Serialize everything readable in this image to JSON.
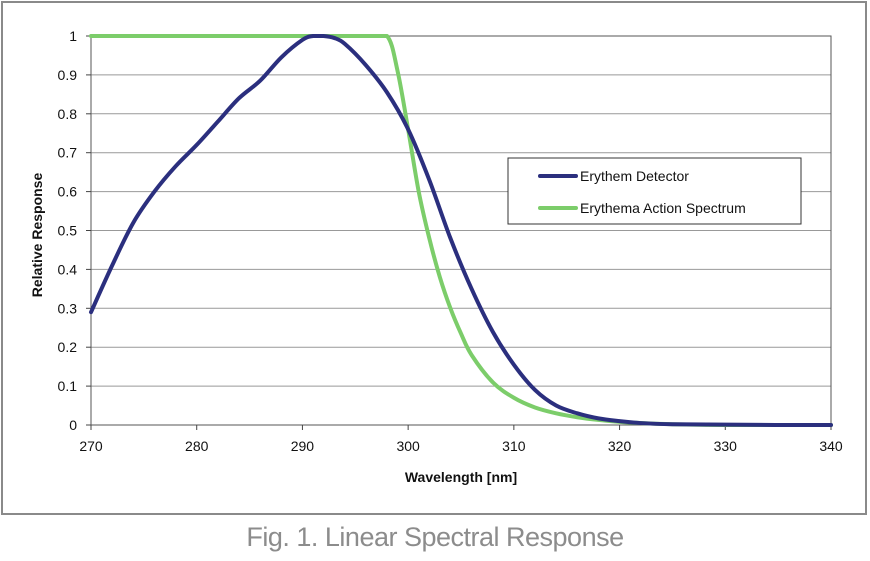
{
  "caption": "Fig. 1. Linear Spectral Response",
  "colors": {
    "detector": "#2b2f7e",
    "action": "#7ccd6a",
    "frame": "#8a8a8a",
    "grid": "#999999",
    "caption": "#8c8c8c"
  },
  "chart_data": {
    "type": "line",
    "title": "",
    "xlabel": "Wavelength [nm]",
    "ylabel": "Relative Response",
    "xlim": [
      270,
      340
    ],
    "ylim": [
      0,
      1
    ],
    "x_ticks": [
      "270",
      "280",
      "290",
      "300",
      "310",
      "320",
      "330",
      "340"
    ],
    "y_ticks": [
      "0",
      "0.1",
      "0.2",
      "0.3",
      "0.4",
      "0.5",
      "0.6",
      "0.7",
      "0.8",
      "0.9",
      "1"
    ],
    "grid": true,
    "legend_position": "right",
    "series": [
      {
        "name": "Erythem Detector",
        "color": "#2b2f7e",
        "x": [
          270,
          272,
          274,
          276,
          278,
          280,
          282,
          284,
          286,
          288,
          290,
          291,
          292,
          293,
          294,
          296,
          298,
          300,
          302,
          304,
          306,
          308,
          310,
          312,
          314,
          316,
          318,
          320,
          322,
          325,
          330,
          335,
          340
        ],
        "y": [
          0.29,
          0.41,
          0.52,
          0.6,
          0.665,
          0.72,
          0.78,
          0.84,
          0.885,
          0.945,
          0.99,
          1.0,
          1.0,
          0.995,
          0.98,
          0.925,
          0.855,
          0.76,
          0.63,
          0.48,
          0.35,
          0.24,
          0.155,
          0.09,
          0.05,
          0.03,
          0.017,
          0.01,
          0.005,
          0.002,
          0.001,
          0.0,
          0.0
        ]
      },
      {
        "name": "Erythema Action Spectrum",
        "color": "#7ccd6a",
        "x": [
          270,
          280,
          290,
          296,
          298,
          299,
          300,
          301,
          302,
          303,
          304,
          305,
          306,
          308,
          310,
          312,
          314,
          316,
          318,
          320,
          322,
          325,
          330,
          335,
          340
        ],
        "y": [
          1.0,
          1.0,
          1.0,
          1.0,
          1.0,
          0.91,
          0.76,
          0.6,
          0.48,
          0.38,
          0.3,
          0.235,
          0.18,
          0.11,
          0.07,
          0.045,
          0.03,
          0.02,
          0.013,
          0.008,
          0.005,
          0.002,
          0.0,
          0.0,
          0.0
        ]
      }
    ]
  }
}
